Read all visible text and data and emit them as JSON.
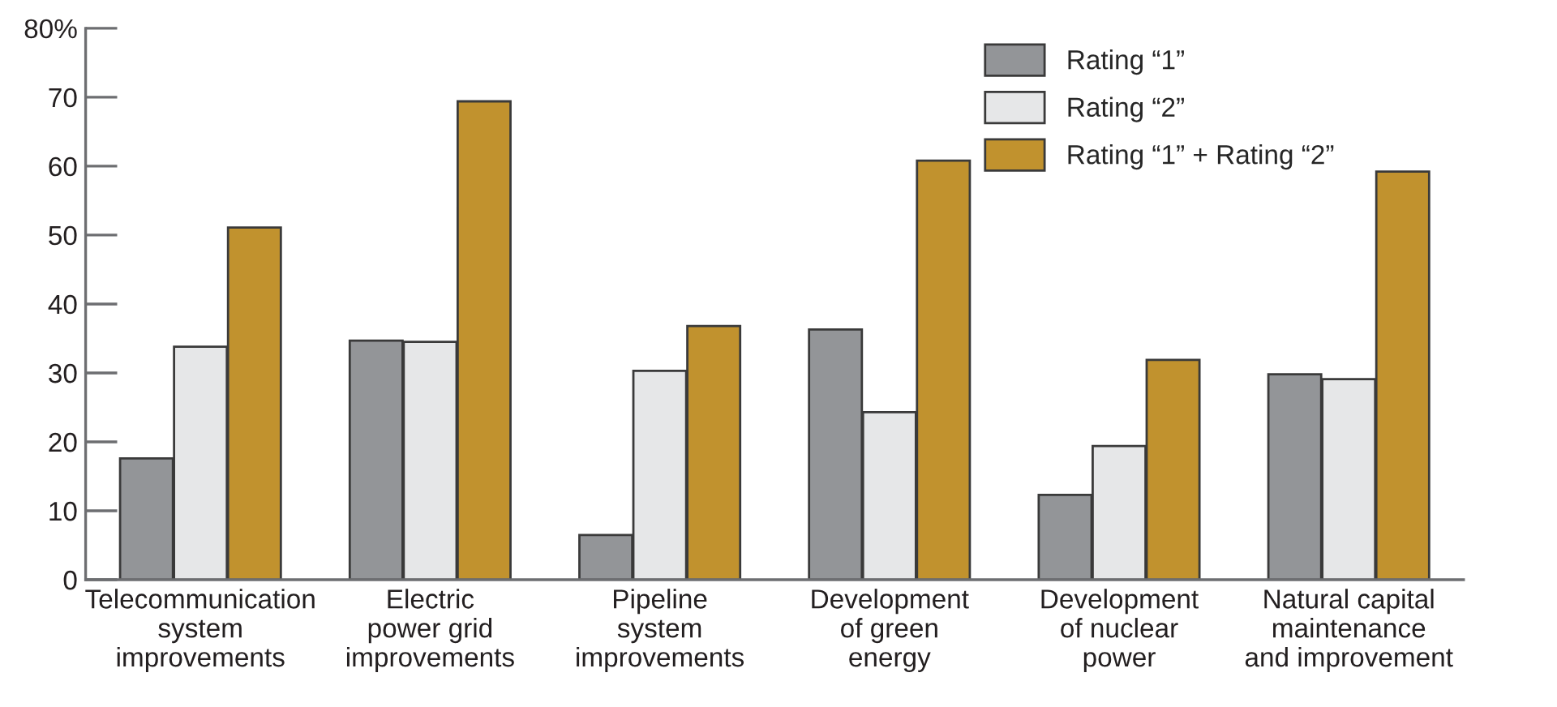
{
  "chart_data": {
    "type": "bar",
    "categories": [
      "Telecommunication\nsystem\nimprovements",
      "Electric\npower grid\nimprovements",
      "Pipeline\nsystem\nimprovements",
      "Development\nof green\nenergy",
      "Development\nof nuclear\npower",
      "Natural capital\nmaintenance\nand improvement"
    ],
    "series": [
      {
        "name": "Rating “1”",
        "color": "#939598",
        "values": [
          17.6,
          34.7,
          6.5,
          36.3,
          12.3,
          29.8
        ]
      },
      {
        "name": "Rating “2”",
        "color": "#e6e7e8",
        "values": [
          33.8,
          34.5,
          30.3,
          24.3,
          19.4,
          29.1
        ]
      },
      {
        "name": "Rating “1” + Rating “2”",
        "color": "#c1922e",
        "values": [
          51.1,
          69.4,
          36.8,
          60.8,
          31.9,
          59.2
        ]
      }
    ],
    "ylim": [
      0,
      80
    ],
    "yticks": [
      0,
      10,
      20,
      30,
      40,
      50,
      60,
      70,
      {
        "value": 80,
        "label": "80%"
      }
    ],
    "grid": false,
    "legend": "top right"
  }
}
